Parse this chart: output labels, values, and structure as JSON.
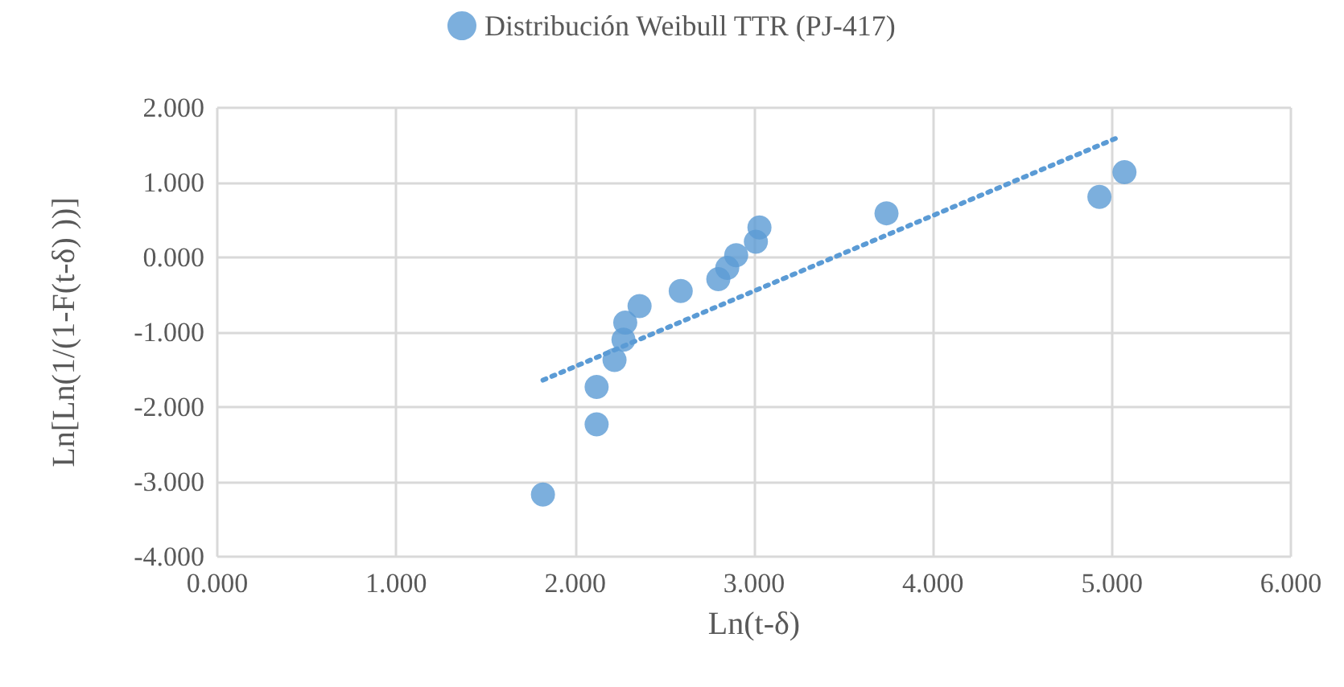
{
  "chart_data": {
    "type": "scatter",
    "xlabel": "Ln(t-δ)",
    "ylabel": "Ln[Ln(1/(1-F(t-δ) ))]",
    "legend": "top",
    "grid": true,
    "marker": "circle",
    "series": [
      {
        "name": "Distribución Weibull TTR (PJ-417)",
        "color": "#5b9bd5",
        "x": [
          1.82,
          2.12,
          2.12,
          2.22,
          2.27,
          2.28,
          2.36,
          2.59,
          2.8,
          2.85,
          2.9,
          3.01,
          3.03,
          3.74,
          4.93,
          5.07
        ],
        "values": [
          -3.17,
          -2.23,
          -1.73,
          -1.37,
          -1.1,
          -0.87,
          -0.65,
          -0.45,
          -0.29,
          -0.14,
          0.03,
          0.21,
          0.4,
          0.59,
          0.81,
          1.14
        ]
      },
      {
        "type": "line",
        "line_style": "dotted",
        "marker": "none",
        "color": "#5b9bd5",
        "x": [
          1.82,
          5.02
        ],
        "values": [
          -1.64,
          1.59
        ]
      }
    ],
    "xlim": [
      0,
      6
    ],
    "xticks": [
      {
        "value": 0,
        "label": "0.000"
      },
      {
        "value": 1,
        "label": "1.000"
      },
      {
        "value": 2,
        "label": "2.000"
      },
      {
        "value": 3,
        "label": "3.000"
      },
      {
        "value": 4,
        "label": "4.000"
      },
      {
        "value": 5,
        "label": "5.000"
      },
      {
        "value": 6,
        "label": "6.000"
      }
    ],
    "ylim": [
      -4,
      2
    ],
    "yticks": [
      {
        "value": -4,
        "label": "-4.000"
      },
      {
        "value": -3,
        "label": "-3.000"
      },
      {
        "value": -2,
        "label": "-2.000"
      },
      {
        "value": -1,
        "label": "-1.000"
      },
      {
        "value": 0,
        "label": "0.000"
      },
      {
        "value": 1,
        "label": "1.000"
      },
      {
        "value": 2,
        "label": "2.000"
      }
    ]
  }
}
